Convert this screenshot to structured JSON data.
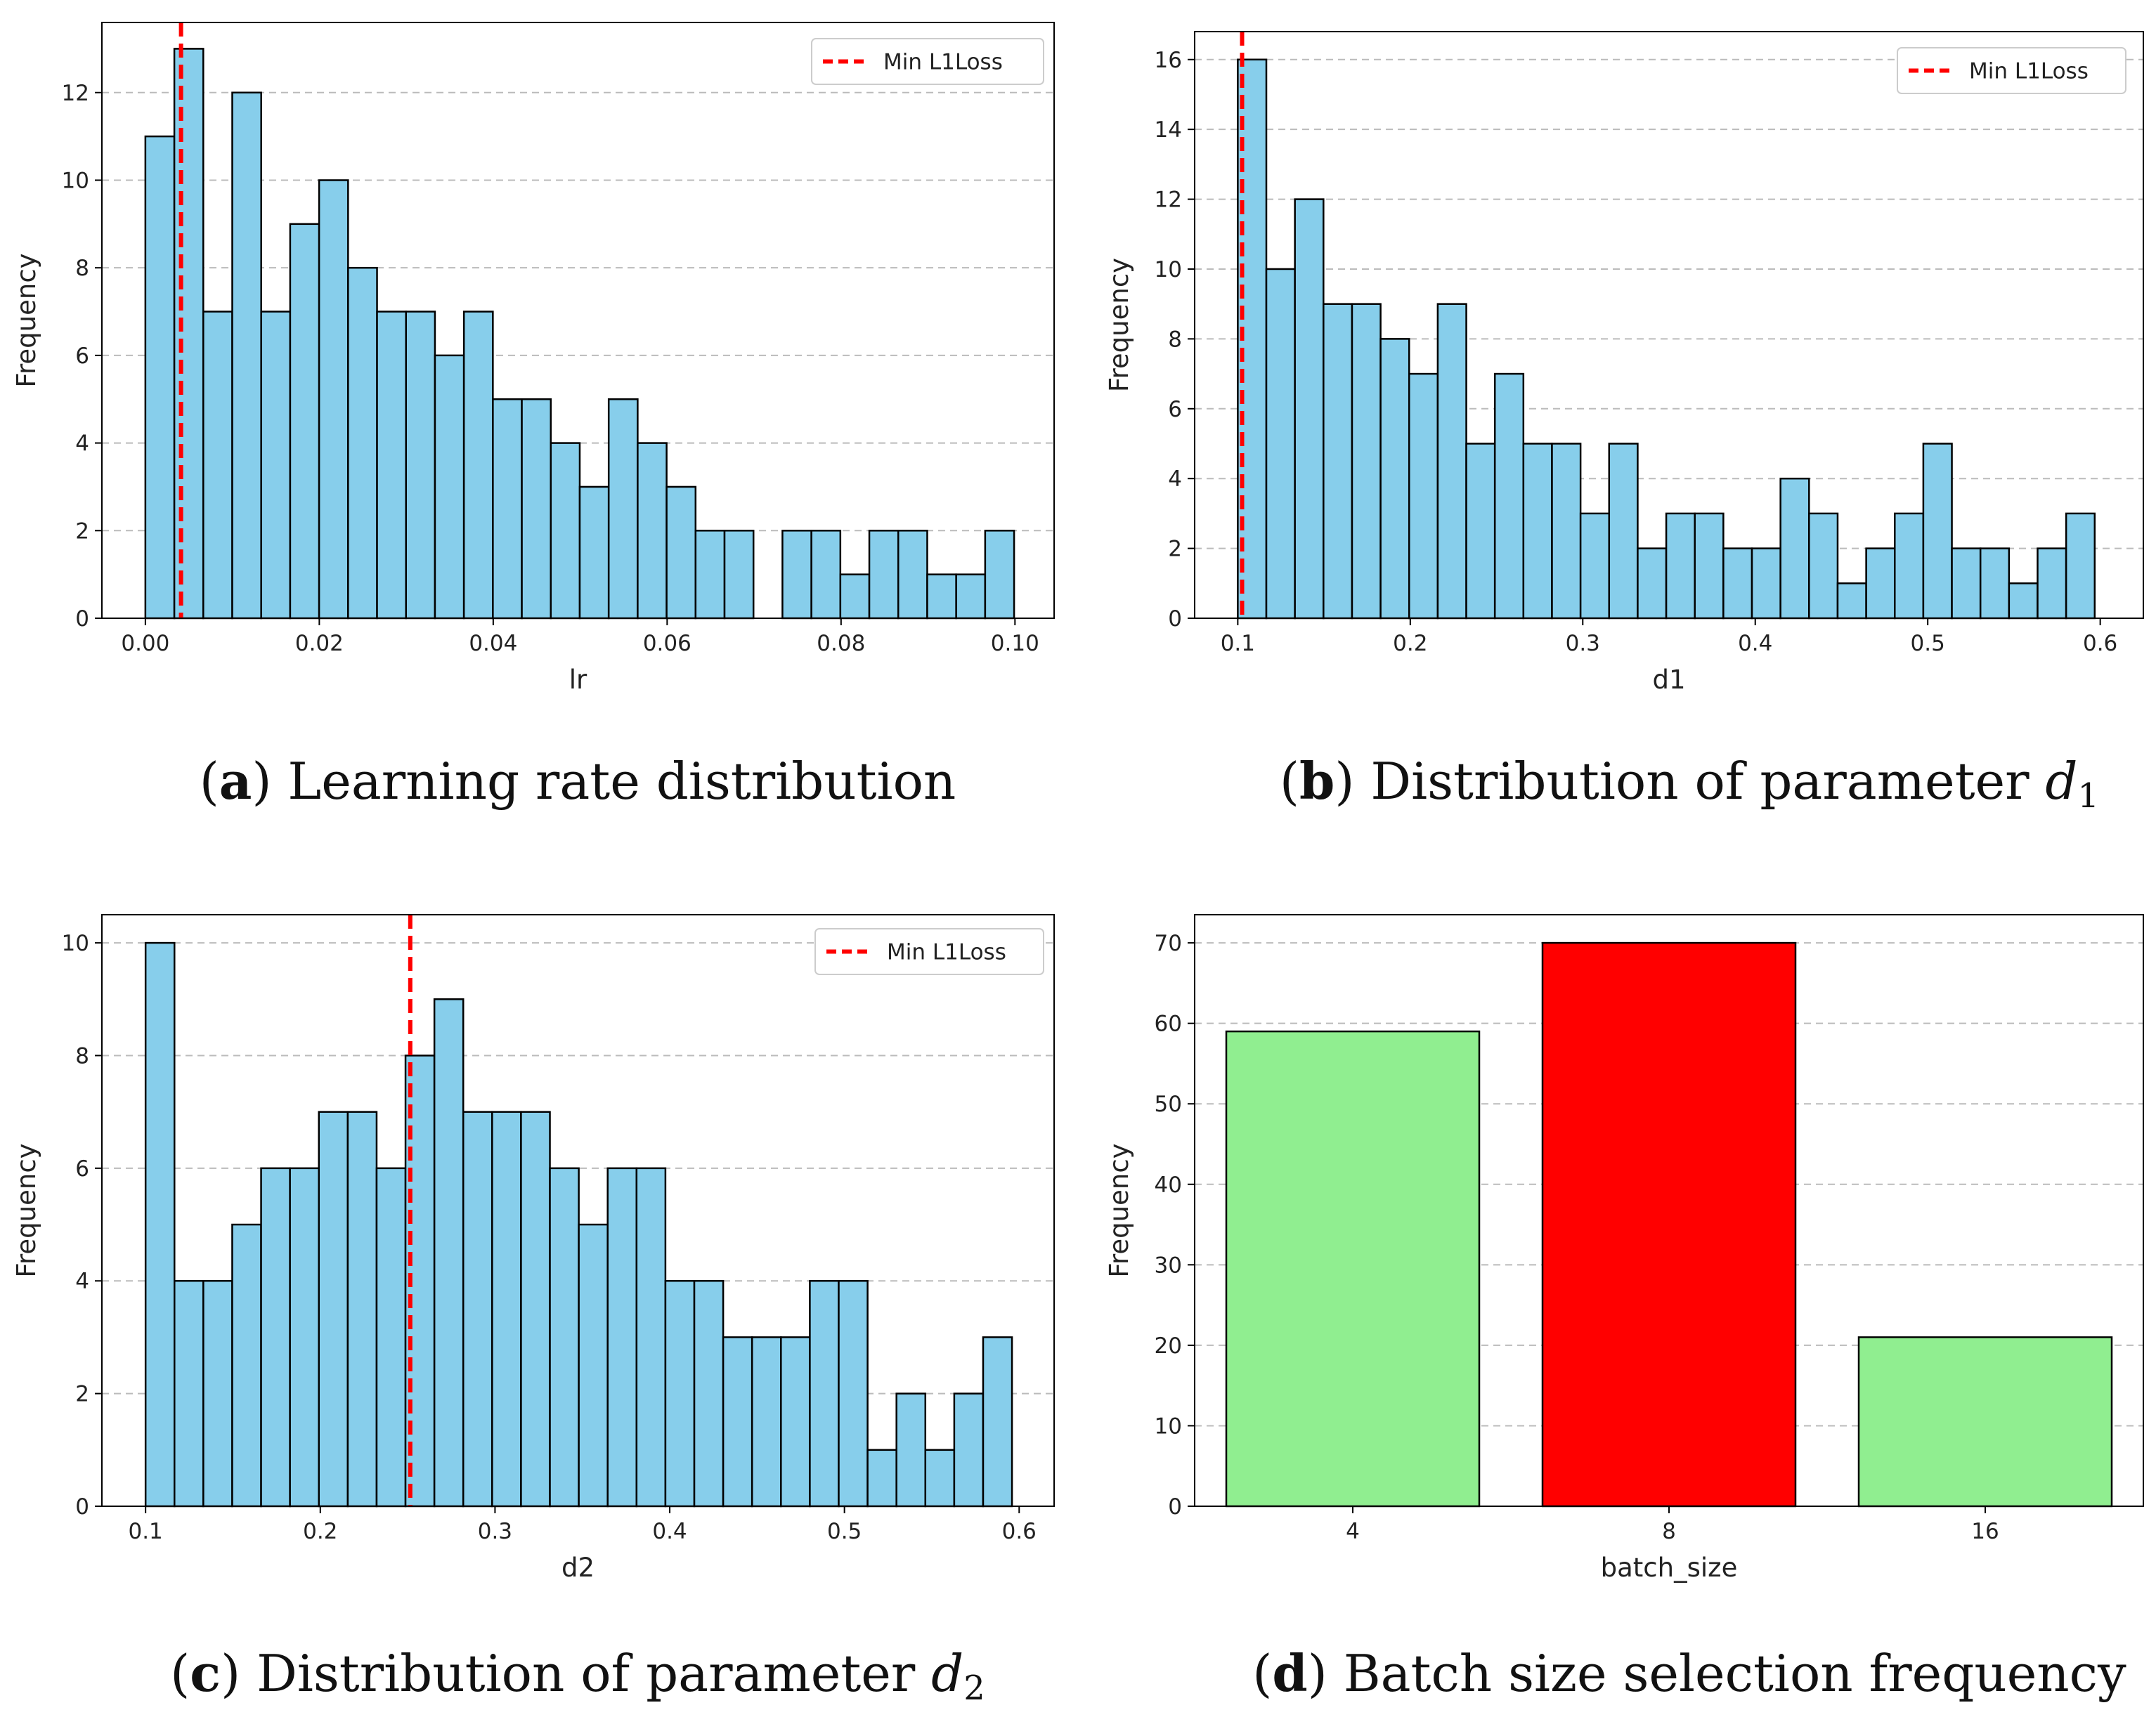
{
  "colors": {
    "hist_fill": "#87CEEB",
    "edge": "#000000",
    "min_line": "#FF0000",
    "bar_default": "#90EE90",
    "bar_highlight": "#FF0000",
    "grid": "#BBBBBB"
  },
  "chart_data": [
    {
      "id": "a",
      "type": "bar",
      "subtype": "histogram",
      "xlabel": "lr",
      "ylabel": "Frequency",
      "xlim": [
        -0.005,
        0.1045
      ],
      "ylim": [
        0,
        13.6
      ],
      "xticks": [
        0.0,
        0.02,
        0.04,
        0.06,
        0.08,
        0.1
      ],
      "xtick_labels": [
        "0.00",
        "0.02",
        "0.04",
        "0.06",
        "0.08",
        "0.10"
      ],
      "yticks": [
        0,
        2,
        4,
        6,
        8,
        10,
        12
      ],
      "bin_start": 0.0,
      "bin_width": 0.00333,
      "values": [
        11,
        13,
        7,
        12,
        7,
        9,
        10,
        8,
        7,
        7,
        6,
        7,
        5,
        5,
        4,
        3,
        5,
        4,
        3,
        2,
        2,
        0,
        2,
        2,
        1,
        2,
        2,
        1,
        1,
        2
      ],
      "min_line_x": 0.0041,
      "legend_label": "Min L1Loss",
      "legend_position": "upper right",
      "grid": "y dashed",
      "caption_letter": "a",
      "caption_text": " Learning rate distribution"
    },
    {
      "id": "b",
      "type": "bar",
      "subtype": "histogram",
      "xlabel": "d1",
      "ylabel": "Frequency",
      "xlim": [
        0.075,
        0.625
      ],
      "ylim": [
        0,
        16.8
      ],
      "xticks": [
        0.1,
        0.2,
        0.3,
        0.4,
        0.5,
        0.6
      ],
      "xtick_labels": [
        "0.1",
        "0.2",
        "0.3",
        "0.4",
        "0.5",
        "0.6"
      ],
      "yticks": [
        0,
        2,
        4,
        6,
        8,
        10,
        12,
        14,
        16
      ],
      "bin_start": 0.1,
      "bin_width": 0.01656,
      "values": [
        16,
        10,
        12,
        9,
        9,
        8,
        7,
        9,
        5,
        7,
        5,
        5,
        3,
        5,
        2,
        3,
        3,
        2,
        2,
        4,
        3,
        1,
        2,
        3,
        5,
        2,
        2,
        1,
        2,
        3
      ],
      "min_line_x": 0.1025,
      "legend_label": "Min L1Loss",
      "legend_position": "upper right",
      "grid": "y dashed",
      "caption_letter": "b",
      "caption_text": " Distribution of parameter ",
      "caption_var": "d",
      "caption_sub": "1"
    },
    {
      "id": "c",
      "type": "bar",
      "subtype": "histogram",
      "xlabel": "d2",
      "ylabel": "Frequency",
      "xlim": [
        0.075,
        0.62
      ],
      "ylim": [
        0,
        10.5
      ],
      "xticks": [
        0.1,
        0.2,
        0.3,
        0.4,
        0.5,
        0.6
      ],
      "xtick_labels": [
        "0.1",
        "0.2",
        "0.3",
        "0.4",
        "0.5",
        "0.6"
      ],
      "yticks": [
        0,
        2,
        4,
        6,
        8,
        10
      ],
      "bin_start": 0.1,
      "bin_width": 0.01653,
      "values": [
        10,
        4,
        4,
        5,
        6,
        6,
        7,
        7,
        6,
        8,
        9,
        7,
        7,
        7,
        6,
        5,
        6,
        6,
        4,
        4,
        3,
        3,
        3,
        4,
        4,
        1,
        2,
        1,
        2,
        3
      ],
      "min_line_x": 0.2515,
      "legend_label": "Min L1Loss",
      "legend_position": "upper right",
      "grid": "y dashed",
      "caption_letter": "c",
      "caption_text": " Distribution of parameter ",
      "caption_var": "d",
      "caption_sub": "2"
    },
    {
      "id": "d",
      "type": "bar",
      "xlabel": "batch_size",
      "ylabel": "Frequency",
      "categories": [
        "4",
        "8",
        "16"
      ],
      "values": [
        59,
        70,
        21
      ],
      "highlight_index": 1,
      "ylim": [
        0,
        73.5
      ],
      "yticks": [
        0,
        10,
        20,
        30,
        40,
        50,
        60,
        70
      ],
      "grid": "y dashed",
      "caption_letter": "d",
      "caption_text": " Batch size selection frequency"
    }
  ]
}
